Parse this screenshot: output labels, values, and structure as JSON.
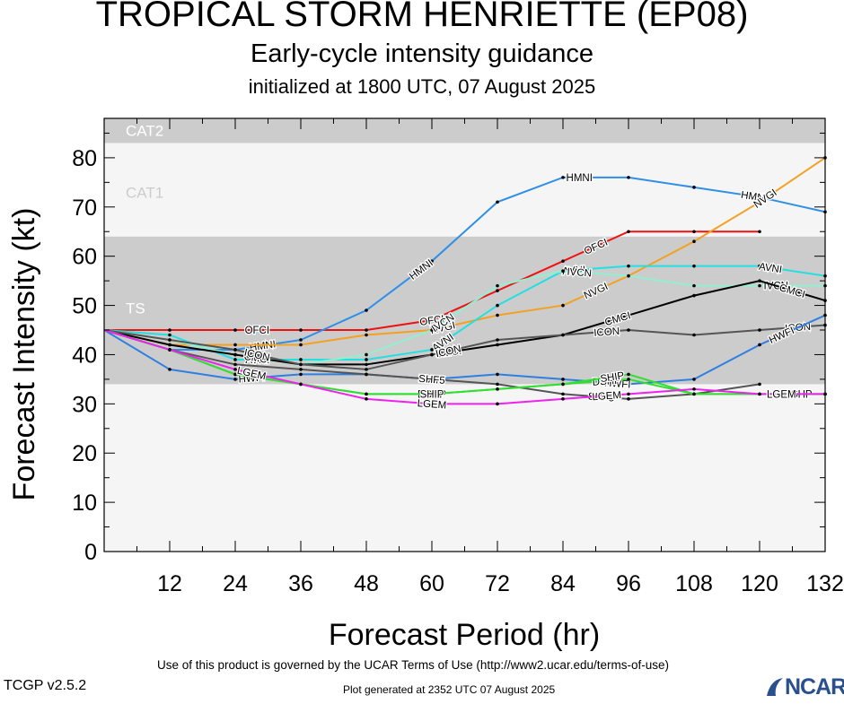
{
  "header": {
    "title": "TROPICAL STORM HENRIETTE (EP08)",
    "subtitle": "Early-cycle intensity guidance",
    "init": "initialized at 1800 UTC, 07 August 2025"
  },
  "footer": {
    "terms": "Use of this product is governed by the UCAR Terms of Use (http://www2.ucar.edu/terms-of-use)",
    "version": "TCGP v2.5.2",
    "generated": "Plot generated at 2352 UTC   07 August 2025",
    "logo_text": "NCAR"
  },
  "chart_data": {
    "type": "line",
    "xlabel": "Forecast Period (hr)",
    "ylabel": "Forecast Intensity (kt)",
    "xlim": [
      0,
      132
    ],
    "ylim": [
      0,
      88
    ],
    "xticks": [
      12,
      24,
      36,
      48,
      60,
      72,
      84,
      96,
      108,
      120,
      132
    ],
    "yticks": [
      0,
      10,
      20,
      30,
      40,
      50,
      60,
      70,
      80
    ],
    "bands": [
      {
        "label": "TS",
        "from": 34,
        "to": 64,
        "color": "#cccccc"
      },
      {
        "label": "CAT1",
        "from": 64,
        "to": 83,
        "color": "#f5f5f5"
      },
      {
        "label": "CAT2",
        "from": 83,
        "to": 88,
        "color": "#cccccc"
      }
    ],
    "series": [
      {
        "name": "OFCI",
        "color": "#ee1111",
        "x": [
          0,
          12,
          24,
          36,
          48,
          60,
          72,
          84,
          96,
          108,
          120
        ],
        "values": [
          45,
          45,
          45,
          45,
          45,
          47,
          53,
          59,
          65,
          65,
          65
        ],
        "labels_at": [
          28,
          60,
          90
        ]
      },
      {
        "name": "HMNI",
        "color": "#2f8fe8",
        "x": [
          0,
          12,
          24,
          36,
          48,
          60,
          72,
          84,
          96,
          108,
          120,
          132
        ],
        "values": [
          45,
          41,
          41,
          43,
          49,
          59,
          71,
          76,
          76,
          74,
          72,
          69
        ],
        "labels_at": [
          29,
          58,
          87,
          119
        ]
      },
      {
        "name": "NVGI",
        "color": "#f4a020",
        "x": [
          0,
          12,
          24,
          36,
          48,
          60,
          72,
          84,
          96,
          108,
          120,
          132
        ],
        "values": [
          45,
          42,
          42,
          42,
          44,
          45,
          48,
          50,
          56,
          63,
          71,
          80
        ],
        "labels_at": [
          62,
          90,
          121
        ]
      },
      {
        "name": "AVNI",
        "color": "#22e0e0",
        "x": [
          0,
          12,
          24,
          36,
          48,
          60,
          72,
          84,
          96,
          108,
          120,
          132
        ],
        "values": [
          45,
          44,
          39,
          39,
          39,
          41,
          50,
          57,
          58,
          58,
          58,
          56
        ],
        "labels_at": [
          28,
          62,
          86,
          122
        ]
      },
      {
        "name": "IVCN",
        "color": "#90f0d0",
        "x": [
          0,
          12,
          24,
          36,
          48,
          60,
          72,
          84,
          96,
          108,
          120,
          132
        ],
        "values": [
          45,
          43,
          40,
          38,
          40,
          45,
          54,
          57,
          56,
          54,
          54,
          54
        ],
        "labels_at": [
          62,
          87,
          123
        ]
      },
      {
        "name": "CMCI",
        "color": "#000000",
        "x": [
          0,
          12,
          24,
          36,
          48,
          60,
          72,
          84,
          96,
          108,
          120,
          132
        ],
        "values": [
          45,
          42,
          40,
          38,
          38,
          40,
          42,
          44,
          48,
          52,
          55,
          51
        ],
        "labels_at": [
          28,
          63,
          94,
          126
        ]
      },
      {
        "name": "ICON",
        "color": "#555555",
        "x": [
          0,
          12,
          24,
          36,
          48,
          60,
          72,
          84,
          96,
          108,
          120,
          132
        ],
        "values": [
          45,
          43,
          41,
          38,
          37,
          40,
          43,
          44,
          45,
          44,
          45,
          46
        ],
        "labels_at": [
          28,
          63,
          92,
          127
        ]
      },
      {
        "name": "HWFI",
        "color": "#2f7fe0",
        "x": [
          0,
          12,
          24,
          36,
          48,
          60,
          72,
          84,
          96,
          108,
          120,
          132
        ],
        "values": [
          45,
          37,
          35,
          36,
          36,
          35,
          36,
          35,
          34,
          35,
          42,
          48
        ],
        "labels_at": [
          27,
          60,
          94,
          124
        ]
      },
      {
        "name": "SHF5",
        "color": "#555555",
        "x": [
          0,
          12,
          24,
          36,
          48,
          60,
          72,
          84,
          96,
          108,
          120
        ],
        "values": [
          45,
          41,
          38,
          37,
          36,
          35,
          34,
          32,
          31,
          32,
          34
        ],
        "labels_at": [
          60,
          91
        ]
      },
      {
        "name": "DSHP",
        "color": "#33dd33",
        "x": [
          0,
          12,
          24,
          36,
          48,
          60,
          72,
          84,
          96,
          108,
          120,
          132
        ],
        "values": [
          45,
          41,
          36,
          34,
          32,
          32,
          33,
          34,
          35,
          32,
          32,
          32
        ],
        "labels_at": [
          60,
          92,
          127
        ]
      },
      {
        "name": "SHIP",
        "color": "#33dd33",
        "x": [
          0,
          12,
          24,
          36,
          48,
          60,
          72,
          84,
          96,
          108,
          120,
          132
        ],
        "values": [
          45,
          41,
          36,
          34,
          32,
          32,
          33,
          34,
          36,
          32,
          32,
          32
        ],
        "labels_at": [
          60,
          93
        ]
      },
      {
        "name": "LGEM",
        "color": "#ee22ee",
        "x": [
          0,
          12,
          24,
          36,
          48,
          60,
          72,
          84,
          96,
          108,
          120,
          132
        ],
        "values": [
          45,
          41,
          37,
          34,
          31,
          30,
          30,
          31,
          32,
          33,
          32,
          32
        ],
        "labels_at": [
          27,
          60,
          92,
          124
        ]
      }
    ]
  }
}
